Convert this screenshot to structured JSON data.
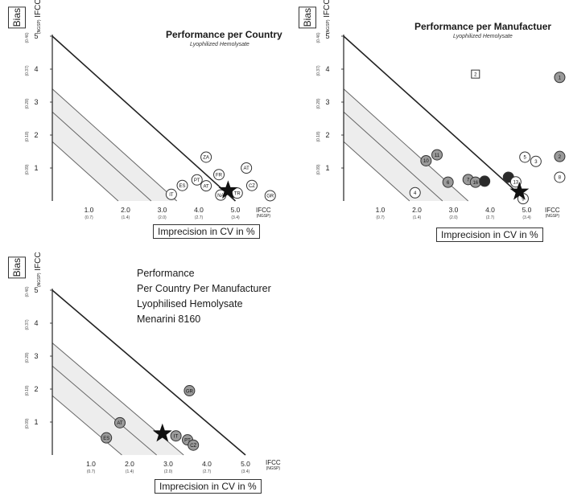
{
  "panels": [
    {
      "title": "Performance per Country",
      "subtitle": "Lyophilized Hemolysate",
      "title_lines": [],
      "y_name": "IFCC",
      "y_name_small": "(NGSP)",
      "ylabel": "Bias",
      "xlabel": "Imprecision in CV in %",
      "x_axis_name": "IFCC",
      "x_axis_name_small": "(NGSP)"
    },
    {
      "title": "Performance per Manufactuer",
      "subtitle": "Lyophilized Hemolysate",
      "title_lines": [],
      "y_name": "IFCC",
      "y_name_small": "(NGSP)",
      "ylabel": "Bias",
      "xlabel": "Imprecision in CV in %",
      "x_axis_name": "IFCC",
      "x_axis_name_small": "(NGSP)"
    },
    {
      "title": "",
      "subtitle": "",
      "title_lines": [
        "Performance",
        "Per Country Per Manufacturer",
        "Lyophilised Hemolysate",
        "Menarini 8160"
      ],
      "y_name": "IFCC",
      "y_name_small": "(NGSP)",
      "ylabel": "Bias",
      "xlabel": "Imprecision in CV in %",
      "x_axis_name": "IFCC",
      "x_axis_name_small": "(NGSP)"
    }
  ],
  "chart_data": [
    {
      "type": "scatter",
      "title": "Performance per Country",
      "subtitle": "Lyophilized Hemolysate",
      "xlabel": "Imprecision in CV in %",
      "ylabel": "Bias",
      "xlim": [
        0,
        5.8
      ],
      "ylim": [
        0,
        5
      ],
      "x_ticks": [
        {
          "v": 1.0,
          "label": "1.0",
          "sub": "(0.7)"
        },
        {
          "v": 2.0,
          "label": "2.0",
          "sub": "(1.4)"
        },
        {
          "v": 3.0,
          "label": "3.0",
          "sub": "(2.0)"
        },
        {
          "v": 4.0,
          "label": "4.0",
          "sub": "(2.7)"
        },
        {
          "v": 5.0,
          "label": "5.0",
          "sub": "(3.4)"
        }
      ],
      "y_ticks": [
        {
          "v": 1,
          "label": "1",
          "sub": "(0.09)"
        },
        {
          "v": 2,
          "label": "2",
          "sub": "(0.18)"
        },
        {
          "v": 3,
          "label": "3",
          "sub": "(0.28)"
        },
        {
          "v": 4,
          "label": "4",
          "sub": "(0.37)"
        },
        {
          "v": 5,
          "label": "5",
          "sub": "(0.46)"
        }
      ],
      "limit_lines": [
        {
          "x0": 5.0,
          "y0": 5.0,
          "bold": true
        },
        {
          "x0": 3.4,
          "y0": 3.4,
          "bold": false
        },
        {
          "x0": 2.7,
          "y0": 2.7,
          "bold": false
        },
        {
          "x0": 1.8,
          "y0": 1.8,
          "bold": false
        }
      ],
      "shaded_band": {
        "from": 1.8,
        "to": 3.4
      },
      "target": {
        "x": 4.8,
        "y": 0.32
      },
      "points": [
        {
          "label": "IT",
          "x": 3.25,
          "y": 0.2,
          "fill": "#ffffff",
          "shape": "circle"
        },
        {
          "label": "ES",
          "x": 3.55,
          "y": 0.47,
          "fill": "#ffffff",
          "shape": "circle"
        },
        {
          "label": "PT",
          "x": 3.95,
          "y": 0.64,
          "fill": "#ffffff",
          "shape": "circle"
        },
        {
          "label": "AT",
          "x": 4.2,
          "y": 0.46,
          "fill": "#ffffff",
          "shape": "circle"
        },
        {
          "label": "ZA",
          "x": 4.2,
          "y": 1.33,
          "fill": "#ffffff",
          "shape": "circle"
        },
        {
          "label": "FR",
          "x": 4.55,
          "y": 0.8,
          "fill": "#ffffff",
          "shape": "circle"
        },
        {
          "label": "NA",
          "x": 4.6,
          "y": 0.18,
          "fill": "#ffffff",
          "shape": "circle"
        },
        {
          "label": "TR",
          "x": 5.05,
          "y": 0.24,
          "fill": "#ffffff",
          "shape": "circle"
        },
        {
          "label": "AT",
          "x": 5.3,
          "y": 1.0,
          "fill": "#ffffff",
          "shape": "circle"
        },
        {
          "label": "CZ",
          "x": 5.45,
          "y": 0.47,
          "fill": "#ffffff",
          "shape": "circle"
        },
        {
          "label": "GR",
          "x": 5.95,
          "y": 0.16,
          "fill": "#ffffff",
          "shape": "circle"
        }
      ]
    },
    {
      "type": "scatter",
      "title": "Performance per Manufactuer",
      "subtitle": "Lyophilized Hemolysate",
      "xlabel": "Imprecision in CV in %",
      "ylabel": "Bias",
      "xlim": [
        0,
        5.8
      ],
      "ylim": [
        0,
        5
      ],
      "x_ticks": [
        {
          "v": 1.0,
          "label": "1.0",
          "sub": "(0.7)"
        },
        {
          "v": 2.0,
          "label": "2.0",
          "sub": "(1.4)"
        },
        {
          "v": 3.0,
          "label": "3.0",
          "sub": "(2.0)"
        },
        {
          "v": 4.0,
          "label": "4.0",
          "sub": "(2.7)"
        },
        {
          "v": 5.0,
          "label": "5.0",
          "sub": "(3.4)"
        }
      ],
      "y_ticks": [
        {
          "v": 1,
          "label": "1",
          "sub": "(0.09)"
        },
        {
          "v": 2,
          "label": "2",
          "sub": "(0.18)"
        },
        {
          "v": 3,
          "label": "3",
          "sub": "(0.28)"
        },
        {
          "v": 4,
          "label": "4",
          "sub": "(0.37)"
        },
        {
          "v": 5,
          "label": "5",
          "sub": "(0.46)"
        }
      ],
      "limit_lines": [
        {
          "x0": 5.0,
          "y0": 5.0,
          "bold": true
        },
        {
          "x0": 3.4,
          "y0": 3.4,
          "bold": false
        },
        {
          "x0": 2.7,
          "y0": 2.7,
          "bold": false
        },
        {
          "x0": 1.8,
          "y0": 1.8,
          "bold": false
        }
      ],
      "shaded_band": {
        "from": 1.8,
        "to": 3.4
      },
      "target": {
        "x": 4.8,
        "y": 0.28
      },
      "points": [
        {
          "label": "2",
          "x": 3.6,
          "y": 3.85,
          "fill": "#ffffff",
          "shape": "square"
        },
        {
          "label": "1",
          "x": 5.9,
          "y": 3.75,
          "fill": "#9a9a9a",
          "shape": "circle"
        },
        {
          "label": "2",
          "x": 5.9,
          "y": 1.35,
          "fill": "#9a9a9a",
          "shape": "circle"
        },
        {
          "label": "5",
          "x": 4.95,
          "y": 1.33,
          "fill": "#ffffff",
          "shape": "circle"
        },
        {
          "label": "3",
          "x": 5.25,
          "y": 1.2,
          "fill": "#ffffff",
          "shape": "circle"
        },
        {
          "label": "8",
          "x": 5.9,
          "y": 0.72,
          "fill": "#ffffff",
          "shape": "circle"
        },
        {
          "label": "11",
          "x": 2.55,
          "y": 1.4,
          "fill": "#9a9a9a",
          "shape": "circle"
        },
        {
          "label": "10",
          "x": 2.25,
          "y": 1.22,
          "fill": "#9a9a9a",
          "shape": "circle"
        },
        {
          "label": "6",
          "x": 2.85,
          "y": 0.57,
          "fill": "#9a9a9a",
          "shape": "circle"
        },
        {
          "label": "7",
          "x": 3.4,
          "y": 0.65,
          "fill": "#9a9a9a",
          "shape": "circle"
        },
        {
          "label": "16",
          "x": 3.6,
          "y": 0.57,
          "fill": "#9a9a9a",
          "shape": "circle"
        },
        {
          "label": "",
          "x": 3.85,
          "y": 0.6,
          "fill": "#2a2a2a",
          "shape": "circle"
        },
        {
          "label": "",
          "x": 4.5,
          "y": 0.72,
          "fill": "#2a2a2a",
          "shape": "circle"
        },
        {
          "label": "13",
          "x": 4.7,
          "y": 0.58,
          "fill": "#ffffff",
          "shape": "circle"
        },
        {
          "label": "4",
          "x": 1.95,
          "y": 0.25,
          "fill": "#ffffff",
          "shape": "circle"
        },
        {
          "label": "9",
          "x": 4.9,
          "y": 0.07,
          "fill": "#ffffff",
          "shape": "circle"
        }
      ]
    },
    {
      "type": "scatter",
      "title": "Performance Per Country Per Manufacturer Lyophilised Hemolysate Menarini 8160",
      "xlabel": "Imprecision in CV in %",
      "ylabel": "Bias",
      "xlim": [
        0,
        5.8
      ],
      "ylim": [
        0,
        5
      ],
      "x_ticks": [
        {
          "v": 1.0,
          "label": "1.0",
          "sub": "(0.7)"
        },
        {
          "v": 2.0,
          "label": "2.0",
          "sub": "(1.4)"
        },
        {
          "v": 3.0,
          "label": "3.0",
          "sub": "(2.0)"
        },
        {
          "v": 4.0,
          "label": "4.0",
          "sub": "(2.7)"
        },
        {
          "v": 5.0,
          "label": "5.0",
          "sub": "(3.4)"
        }
      ],
      "y_ticks": [
        {
          "v": 1,
          "label": "1",
          "sub": "(0.09)"
        },
        {
          "v": 2,
          "label": "2",
          "sub": "(0.18)"
        },
        {
          "v": 3,
          "label": "3",
          "sub": "(0.28)"
        },
        {
          "v": 4,
          "label": "4",
          "sub": "(0.37)"
        },
        {
          "v": 5,
          "label": "5",
          "sub": "(0.46)"
        }
      ],
      "limit_lines": [
        {
          "x0": 5.0,
          "y0": 5.0,
          "bold": true
        },
        {
          "x0": 3.4,
          "y0": 3.4,
          "bold": false
        },
        {
          "x0": 2.7,
          "y0": 2.7,
          "bold": false
        },
        {
          "x0": 1.8,
          "y0": 1.8,
          "bold": false
        }
      ],
      "shaded_band": {
        "from": 1.8,
        "to": 3.4
      },
      "target": {
        "x": 2.85,
        "y": 0.65
      },
      "points": [
        {
          "label": "GR",
          "x": 3.55,
          "y": 1.95,
          "fill": "#9a9a9a",
          "shape": "circle"
        },
        {
          "label": "AT",
          "x": 1.75,
          "y": 0.98,
          "fill": "#9a9a9a",
          "shape": "circle"
        },
        {
          "label": "ES",
          "x": 1.4,
          "y": 0.52,
          "fill": "#9a9a9a",
          "shape": "circle"
        },
        {
          "label": "IT",
          "x": 3.2,
          "y": 0.58,
          "fill": "#9a9a9a",
          "shape": "circle"
        },
        {
          "label": "PT",
          "x": 3.5,
          "y": 0.46,
          "fill": "#9a9a9a",
          "shape": "circle"
        },
        {
          "label": "CZ",
          "x": 3.65,
          "y": 0.3,
          "fill": "#9a9a9a",
          "shape": "circle"
        }
      ]
    }
  ]
}
